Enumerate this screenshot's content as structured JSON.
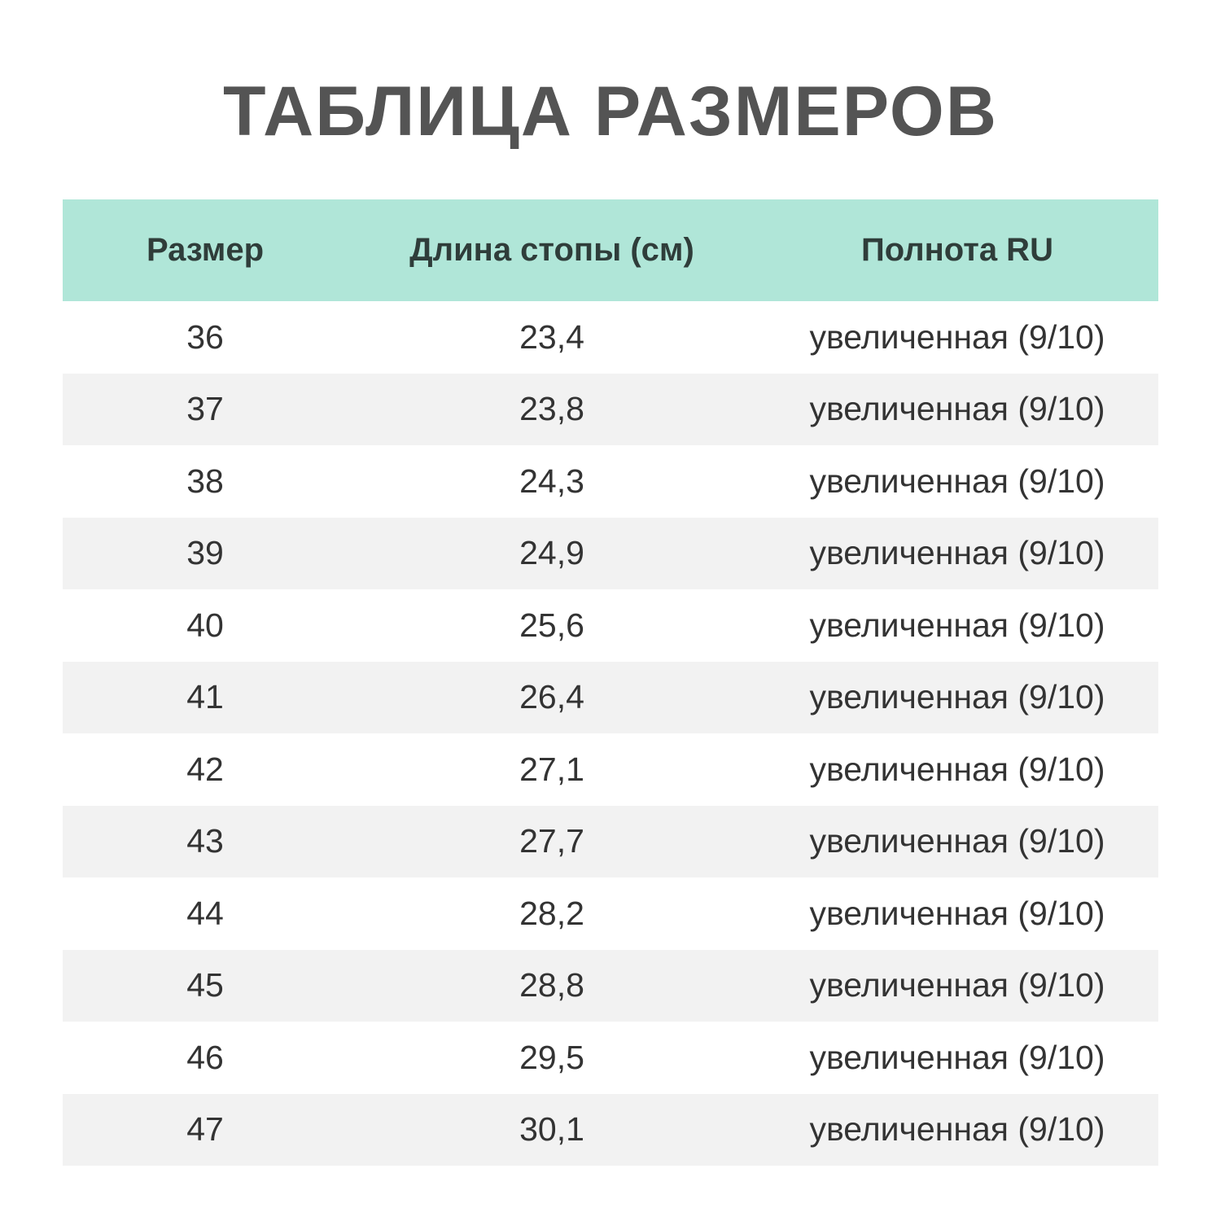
{
  "title": "ТАБЛИЦА РАЗМЕРОВ",
  "table": {
    "headers": [
      "Размер",
      "Длина стопы (см)",
      "Полнота RU"
    ],
    "rows": [
      [
        "36",
        "23,4",
        "увеличенная (9/10)"
      ],
      [
        "37",
        "23,8",
        "увеличенная (9/10)"
      ],
      [
        "38",
        "24,3",
        "увеличенная (9/10)"
      ],
      [
        "39",
        "24,9",
        "увеличенная (9/10)"
      ],
      [
        "40",
        "25,6",
        "увеличенная (9/10)"
      ],
      [
        "41",
        "26,4",
        "увеличенная (9/10)"
      ],
      [
        "42",
        "27,1",
        "увеличенная (9/10)"
      ],
      [
        "43",
        "27,7",
        "увеличенная (9/10)"
      ],
      [
        "44",
        "28,2",
        "увеличенная (9/10)"
      ],
      [
        "45",
        "28,8",
        "увеличенная (9/10)"
      ],
      [
        "46",
        "29,5",
        "увеличенная (9/10)"
      ],
      [
        "47",
        "30,1",
        "увеличенная (9/10)"
      ]
    ]
  },
  "colors": {
    "header_bg": "#b0e6d8",
    "alt_row_bg": "#f2f2f2",
    "title": "#545454"
  }
}
